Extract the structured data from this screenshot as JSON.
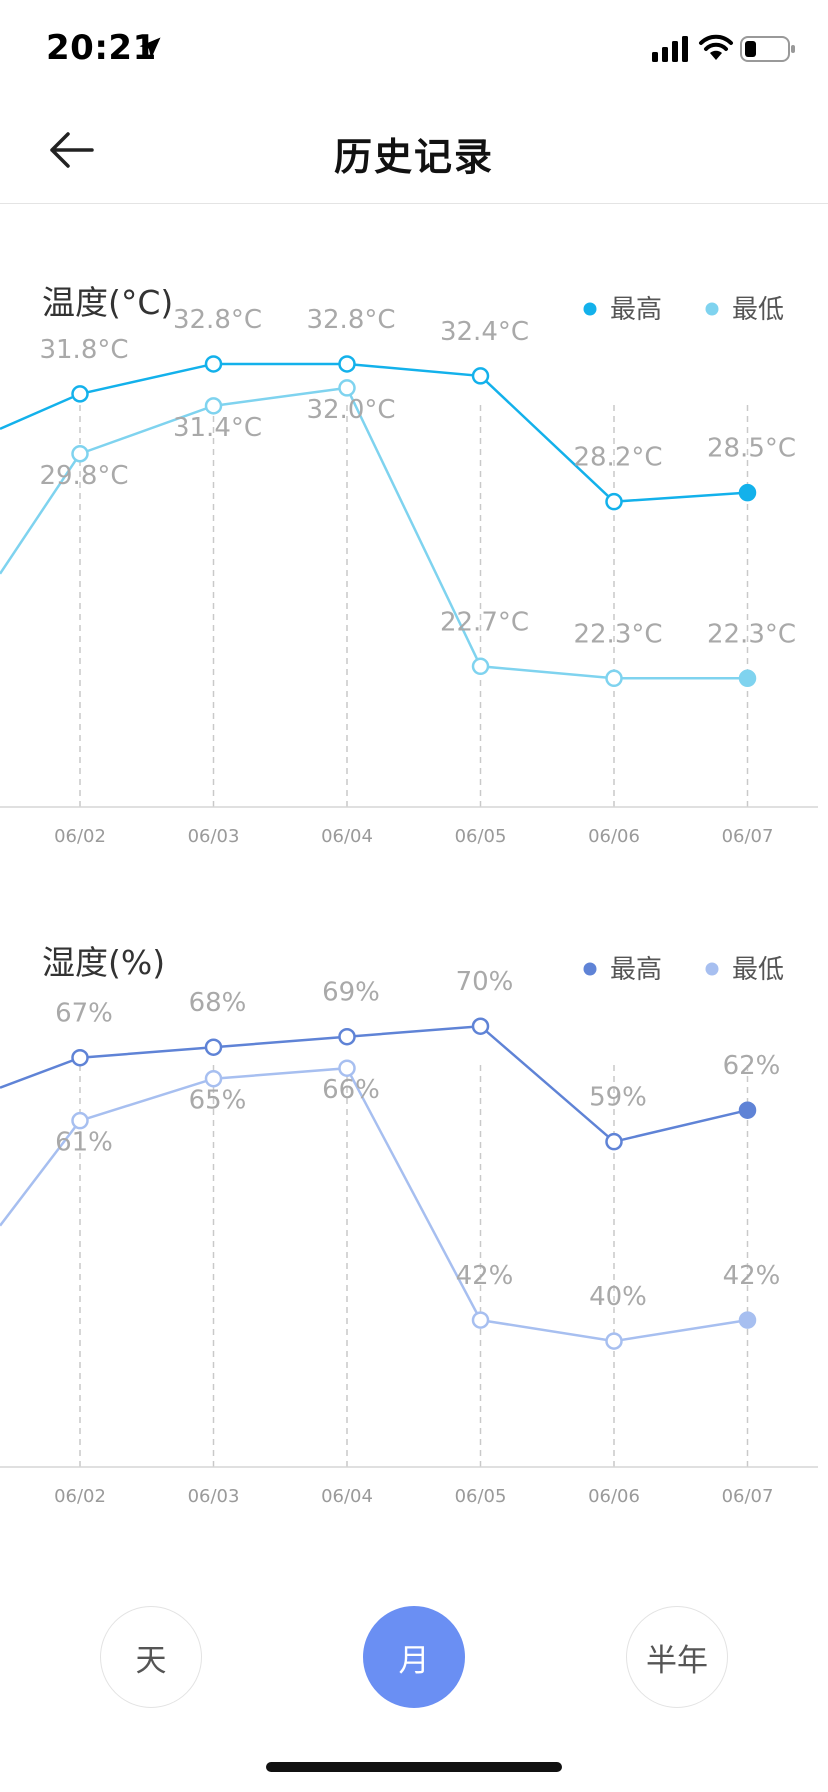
{
  "status_bar": {
    "time": "20:21",
    "icons": [
      "location-arrow-icon",
      "signal-icon",
      "wifi-icon",
      "battery-icon"
    ]
  },
  "nav": {
    "back_icon": "arrow-left-icon",
    "title": "历史记录"
  },
  "charts": {
    "temperature": {
      "title": "温度(°C)"
    },
    "humidity": {
      "title": "湿度(%)"
    }
  },
  "chart_data": [
    {
      "type": "line",
      "title": "温度(°C)",
      "categories": [
        "06/02",
        "06/03",
        "06/04",
        "06/05",
        "06/06",
        "06/07"
      ],
      "unit": "°C",
      "value_labels": true,
      "series": [
        {
          "name": "最高",
          "color": "#13b1eb",
          "values": [
            31.8,
            32.8,
            32.8,
            32.4,
            28.2,
            28.5
          ]
        },
        {
          "name": "最低",
          "color": "#7fd3ef",
          "values": [
            29.8,
            31.4,
            32.0,
            22.7,
            22.3,
            22.3
          ]
        }
      ],
      "legend_position": "top-right",
      "grid": "vertical-dashed"
    },
    {
      "type": "line",
      "title": "湿度(%)",
      "categories": [
        "06/02",
        "06/03",
        "06/04",
        "06/05",
        "06/06",
        "06/07"
      ],
      "unit": "%",
      "value_labels": true,
      "series": [
        {
          "name": "最高",
          "color": "#5f83d6",
          "values": [
            67,
            68,
            69,
            70,
            59,
            62
          ]
        },
        {
          "name": "最低",
          "color": "#a7bff0",
          "values": [
            61,
            65,
            66,
            42,
            40,
            42
          ]
        }
      ],
      "legend_position": "top-right",
      "grid": "vertical-dashed"
    }
  ],
  "range_selector": {
    "options": [
      {
        "label": "天",
        "active": false
      },
      {
        "label": "月",
        "active": true
      },
      {
        "label": "半年",
        "active": false
      }
    ]
  }
}
